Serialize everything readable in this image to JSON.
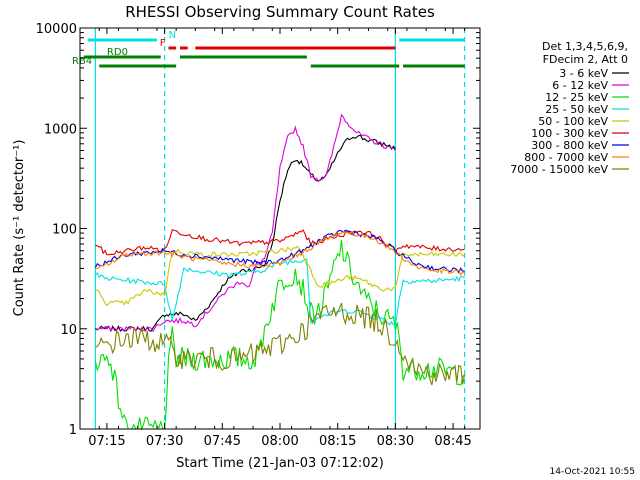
{
  "chart_data": {
    "type": "line",
    "title": "RHESSI Observing Summary Count Rates",
    "xlabel": "Start Time (21-Jan-03 07:12:02)",
    "ylabel": "Count Rate (s⁻¹ detector⁻¹)",
    "yscale": "log",
    "ylim": [
      1,
      10000
    ],
    "xlim": [
      "07:08",
      "08:52"
    ],
    "x_ticks": [
      "07:15",
      "07:30",
      "07:45",
      "08:00",
      "08:15",
      "08:30",
      "08:45"
    ],
    "y_ticks": [
      "1",
      "10",
      "100",
      "1000",
      "10000"
    ],
    "legend_header": [
      "Det 1,3,4,5,6,9,",
      "FDecim 2, Att 0"
    ],
    "timestamp": "14-Oct-2021 10:55",
    "flag_labels": [
      "N",
      "F",
      "RD0",
      "RB4"
    ],
    "series": [
      {
        "name": "3 - 6 keV",
        "color": "#000000",
        "x": [
          "07:12",
          "07:20",
          "07:27",
          "07:30",
          "07:35",
          "07:38",
          "07:42",
          "07:46",
          "07:50",
          "07:54",
          "07:56",
          "07:58",
          "08:00",
          "08:02",
          "08:04",
          "08:06",
          "08:08",
          "08:10",
          "08:12",
          "08:14",
          "08:16",
          "08:18",
          "08:20",
          "08:22",
          "08:24",
          "08:26",
          "08:28",
          "08:30"
        ],
        "values": [
          10,
          10,
          10,
          14,
          14,
          12,
          18,
          30,
          38,
          40,
          44,
          70,
          190,
          390,
          500,
          430,
          340,
          300,
          330,
          470,
          650,
          800,
          850,
          780,
          750,
          700,
          680,
          620
        ]
      },
      {
        "name": "6 - 12 keV",
        "color": "#e000e0",
        "x": [
          "07:12",
          "07:20",
          "07:27",
          "07:30",
          "07:35",
          "07:38",
          "07:42",
          "07:46",
          "07:50",
          "07:52",
          "07:54",
          "07:56",
          "07:58",
          "08:00",
          "08:02",
          "08:04",
          "08:06",
          "08:08",
          "08:10",
          "08:12",
          "08:14",
          "08:16",
          "08:18",
          "08:20",
          "08:22",
          "08:24",
          "08:26",
          "08:28",
          "08:30"
        ],
        "values": [
          10,
          10,
          10,
          12,
          12,
          11,
          16,
          24,
          30,
          26,
          45,
          50,
          90,
          400,
          800,
          1000,
          650,
          340,
          310,
          330,
          650,
          1350,
          1100,
          900,
          820,
          750,
          700,
          640,
          600
        ]
      },
      {
        "name": "12 - 25 keV",
        "color": "#00e000",
        "x": [
          "07:12",
          "07:16",
          "07:18",
          "07:20",
          "07:24",
          "07:28",
          "07:30",
          "07:31",
          "07:32",
          "07:33",
          "07:40",
          "07:48",
          "07:54",
          "07:56",
          "08:00",
          "08:04",
          "08:06",
          "08:08",
          "08:10",
          "08:12",
          "08:14",
          "08:16",
          "08:18",
          "08:20",
          "08:22",
          "08:26",
          "08:30",
          "08:31",
          "08:32",
          "08:40",
          "08:48"
        ],
        "values": [
          5,
          5,
          2,
          1,
          1,
          1,
          1,
          4,
          8,
          5,
          5,
          5,
          5,
          10,
          28,
          38,
          25,
          14,
          15,
          22,
          40,
          65,
          40,
          28,
          20,
          14,
          11,
          8,
          4,
          4,
          3.5
        ]
      },
      {
        "name": "25 - 50 keV",
        "color": "#00e0e0",
        "x": [
          "07:12",
          "07:14",
          "07:22",
          "07:30",
          "07:32",
          "07:35",
          "07:40",
          "07:45",
          "07:50",
          "07:55",
          "08:00",
          "08:05",
          "08:07",
          "08:08",
          "08:10",
          "08:15",
          "08:20",
          "08:25",
          "08:30",
          "08:31",
          "08:32",
          "08:40",
          "08:48"
        ],
        "values": [
          35,
          32,
          30,
          28,
          12,
          40,
          37,
          35,
          35,
          38,
          45,
          48,
          50,
          12,
          13,
          15,
          15,
          13,
          11,
          20,
          30,
          30,
          32
        ]
      },
      {
        "name": "50 - 100 keV",
        "color": "#c8c800",
        "x": [
          "07:12",
          "07:15",
          "07:20",
          "07:25",
          "07:30",
          "07:32",
          "07:40",
          "07:50",
          "08:00",
          "08:05",
          "08:08",
          "08:10",
          "08:15",
          "08:18",
          "08:22",
          "08:26",
          "08:30",
          "08:32",
          "08:40",
          "08:48"
        ],
        "values": [
          25,
          18,
          18,
          24,
          22,
          60,
          55,
          55,
          60,
          65,
          38,
          27,
          30,
          33,
          30,
          25,
          25,
          55,
          55,
          55
        ]
      },
      {
        "name": "100 - 300 keV",
        "color": "#e00000",
        "x": [
          "07:12",
          "07:15",
          "07:25",
          "07:30",
          "07:32",
          "07:40",
          "07:50",
          "08:00",
          "08:06",
          "08:08",
          "08:15",
          "08:20",
          "08:25",
          "08:30",
          "08:32",
          "08:40",
          "08:48"
        ],
        "values": [
          70,
          55,
          65,
          60,
          95,
          80,
          70,
          75,
          95,
          70,
          85,
          95,
          85,
          60,
          68,
          63,
          62
        ]
      },
      {
        "name": "300 - 800 keV",
        "color": "#0000e0",
        "x": [
          "07:12",
          "07:20",
          "07:30",
          "07:35",
          "07:45",
          "07:55",
          "08:00",
          "08:06",
          "08:10",
          "08:16",
          "08:20",
          "08:25",
          "08:30",
          "08:35",
          "08:40",
          "08:48"
        ],
        "values": [
          42,
          55,
          60,
          55,
          50,
          45,
          48,
          60,
          75,
          95,
          90,
          80,
          60,
          45,
          40,
          38
        ]
      },
      {
        "name": "800 - 7000 keV",
        "color": "#ff8000",
        "x": [
          "07:12",
          "07:20",
          "07:30",
          "07:35",
          "07:45",
          "07:55",
          "08:00",
          "08:06",
          "08:10",
          "08:16",
          "08:20",
          "08:25",
          "08:30",
          "08:35",
          "08:40",
          "08:48"
        ],
        "values": [
          38,
          55,
          58,
          52,
          45,
          42,
          45,
          58,
          72,
          92,
          88,
          78,
          58,
          42,
          38,
          36
        ]
      },
      {
        "name": "7000 - 15000 keV",
        "color": "#808000",
        "x": [
          "07:12",
          "07:15",
          "07:20",
          "07:25",
          "07:30",
          "07:35",
          "07:40",
          "07:45",
          "07:50",
          "07:55",
          "08:00",
          "08:05",
          "08:10",
          "08:15",
          "08:20",
          "08:25",
          "08:30",
          "08:35",
          "08:40",
          "08:48"
        ],
        "values": [
          6,
          7,
          8,
          8,
          7,
          5,
          5,
          5,
          5,
          6,
          7,
          9,
          13,
          15,
          14,
          12,
          8,
          4,
          3.5,
          3.5
        ]
      }
    ],
    "flags": [
      {
        "label": "N",
        "color": "#00e0e0",
        "row": 0,
        "segments": [
          [
            "07:10",
            "07:28"
          ],
          [
            "08:31",
            "08:48"
          ]
        ]
      },
      {
        "label": "F",
        "color": "#e00000",
        "row": 1,
        "segments": [
          [
            "07:31",
            "07:33"
          ],
          [
            "07:34",
            "07:36"
          ],
          [
            "07:38",
            "08:30"
          ]
        ]
      },
      {
        "label": "RD0",
        "color": "#008000",
        "row": 2,
        "segments": [
          [
            "07:09",
            "07:29"
          ],
          [
            "07:34",
            "08:07"
          ]
        ]
      },
      {
        "label": "RB4",
        "color": "#008000",
        "row": 3,
        "segments": [
          [
            "07:13",
            "07:33"
          ],
          [
            "08:08",
            "08:31"
          ],
          [
            "08:32",
            "08:48"
          ]
        ]
      }
    ],
    "vlines": [
      {
        "x": "07:12",
        "color": "#00e0e0",
        "style": "solid"
      },
      {
        "x": "07:30",
        "color": "#00e0e0",
        "style": "dashed"
      },
      {
        "x": "08:30",
        "color": "#00e0e0",
        "style": "solid"
      },
      {
        "x": "08:48",
        "color": "#00e0e0",
        "style": "dashed"
      }
    ]
  }
}
